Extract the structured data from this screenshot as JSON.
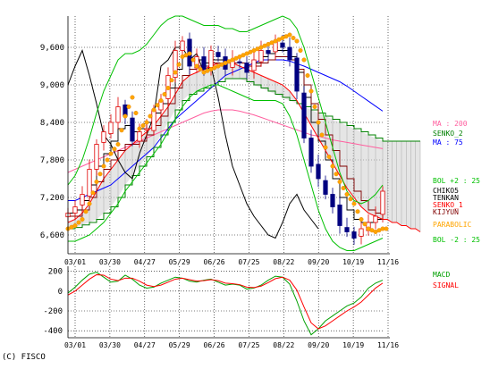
{
  "chart_data": [
    {
      "type": "line",
      "panel": "price",
      "x_ticks": [
        "03/01",
        "03/30",
        "04/27",
        "05/29",
        "06/26",
        "07/25",
        "08/22",
        "09/20",
        "10/19",
        "11/16"
      ],
      "y_ticks": [
        "9,600",
        "9,000",
        "8,400",
        "7,800",
        "7,200",
        "6,600"
      ],
      "ylim": [
        6300,
        10100
      ],
      "candles": {
        "bull_color": "#e00000",
        "bear_color": "#000080",
        "close": [
          6950,
          7050,
          7250,
          7650,
          8050,
          8250,
          8400,
          8650,
          8500,
          8100,
          8250,
          8300,
          8600,
          8750,
          9150,
          9550,
          9700,
          9300,
          9450,
          9250,
          9550,
          9450,
          9250,
          9400,
          9350,
          9200,
          9400,
          9550,
          9500,
          9700,
          9600,
          9400,
          8900,
          8150,
          7700,
          7500,
          7250,
          7050,
          6750,
          6650,
          6550,
          6700,
          6800,
          6900,
          7300
        ]
      },
      "series": [
        {
          "name": "MA : 200",
          "color": "#ff5f9f",
          "values": [
            7600,
            7650,
            7700,
            7750,
            7800,
            7850,
            7900,
            7950,
            8000,
            8050,
            8100,
            8150,
            8200,
            8250,
            8300,
            8350,
            8400,
            8450,
            8500,
            8550,
            8580,
            8600,
            8600,
            8600,
            8580,
            8550,
            8520,
            8480,
            8440,
            8400,
            8360,
            8320,
            8280,
            8240,
            8200,
            8180,
            8150,
            8120,
            8100,
            8080,
            8060,
            8040,
            8020,
            8000,
            7980
          ]
        },
        {
          "name": "MA : 75",
          "color": "#0000ff",
          "values": [
            7150,
            7150,
            7200,
            7250,
            7300,
            7350,
            7400,
            7500,
            7600,
            7700,
            7800,
            7900,
            8000,
            8150,
            8300,
            8450,
            8550,
            8650,
            8750,
            8850,
            8950,
            9050,
            9150,
            9200,
            9250,
            9300,
            9350,
            9400,
            9400,
            9400,
            9400,
            9380,
            9340,
            9300,
            9250,
            9200,
            9150,
            9100,
            9050,
            8980,
            8900,
            8820,
            8740,
            8660,
            8580
          ]
        },
        {
          "name": "SENKO_2",
          "color": "#008000",
          "values": [
            6700,
            6720,
            6760,
            6800,
            6850,
            6950,
            7050,
            7200,
            7400,
            7550,
            7700,
            7850,
            8000,
            8200,
            8400,
            8600,
            8750,
            8850,
            8900,
            8950,
            9000,
            9050,
            9100,
            9100,
            9100,
            9050,
            9000,
            8950,
            8900,
            8850,
            8800,
            8750,
            8700,
            8650,
            8600,
            8550,
            8500,
            8450,
            8400,
            8350,
            8300,
            8250,
            8200,
            8150,
            8100
          ]
        },
        {
          "name": "CHIKO",
          "color": "#000000",
          "values": [
            9000,
            9300,
            9550,
            9150,
            8700,
            8200,
            8050,
            7800,
            7600,
            7500,
            7900,
            8200,
            8500,
            9300,
            9400,
            9600,
            9600,
            9400,
            9500,
            9200,
            9300,
            8800,
            8200,
            7700,
            7400,
            7100,
            6900,
            6750,
            6600,
            6550,
            6800,
            7100,
            7250,
            7000,
            6850,
            6700
          ]
        },
        {
          "name": "TENKAN",
          "color": "#000000",
          "values": [
            6950,
            7000,
            7150,
            7400,
            7700,
            7900,
            8100,
            8300,
            8350,
            8250,
            8300,
            8400,
            8550,
            8700,
            8950,
            9250,
            9450,
            9400,
            9400,
            9350,
            9400,
            9400,
            9350,
            9350,
            9350,
            9300,
            9350,
            9450,
            9500,
            9550,
            9550,
            9450,
            9200,
            8800,
            8400,
            8100,
            7800,
            7500,
            7200,
            7000,
            6850,
            6800,
            6800,
            6850,
            6950
          ]
        },
        {
          "name": "SENKO_1",
          "color": "#ff0000",
          "values": [
            6800,
            6850,
            6950,
            7100,
            7300,
            7500,
            7650,
            7800,
            7950,
            8050,
            8150,
            8250,
            8350,
            8500,
            8650,
            8850,
            9050,
            9150,
            9200,
            9250,
            9300,
            9350,
            9350,
            9350,
            9300,
            9250,
            9200,
            9150,
            9100,
            9050,
            9000,
            8900,
            8750,
            8550,
            8350,
            8150,
            7950,
            7750,
            7550,
            7350,
            7200,
            7050,
            6950,
            6900,
            6850
          ]
        },
        {
          "name": "KIJYUN",
          "color": "#800000",
          "values": [
            6900,
            6900,
            7000,
            7200,
            7450,
            7650,
            7800,
            7950,
            8050,
            8050,
            8100,
            8200,
            8350,
            8500,
            8700,
            8950,
            9150,
            9250,
            9300,
            9300,
            9350,
            9350,
            9350,
            9350,
            9350,
            9300,
            9300,
            9350,
            9400,
            9450,
            9450,
            9400,
            9250,
            9000,
            8700,
            8450,
            8200,
            7950,
            7700,
            7500,
            7300,
            7150,
            7000,
            6950,
            6950
          ]
        },
        {
          "name": "BOL +2 : 25",
          "color": "#00c000",
          "values": [
            7400,
            7550,
            7800,
            8150,
            8550,
            8900,
            9150,
            9400,
            9500,
            9500,
            9550,
            9650,
            9800,
            9950,
            10050,
            10100,
            10100,
            10050,
            10000,
            9950,
            9950,
            9950,
            9900,
            9900,
            9850,
            9850,
            9900,
            9950,
            10000,
            10050,
            10100,
            10050,
            9900,
            9600,
            9200,
            8800,
            8400,
            8000,
            7600,
            7300,
            7150,
            7100,
            7150,
            7250,
            7400
          ]
        },
        {
          "name": "BOL -2 : 25",
          "color": "#00c000",
          "values": [
            6500,
            6500,
            6550,
            6600,
            6700,
            6800,
            6950,
            7100,
            7300,
            7450,
            7600,
            7750,
            7900,
            8050,
            8250,
            8450,
            8650,
            8800,
            8900,
            8950,
            9000,
            9000,
            8950,
            8900,
            8850,
            8800,
            8750,
            8750,
            8750,
            8750,
            8700,
            8500,
            8200,
            7800,
            7400,
            7000,
            6700,
            6500,
            6400,
            6350,
            6350,
            6400,
            6450,
            6500,
            6550
          ]
        },
        {
          "name": "PARABOLIC",
          "color": "#ffa500",
          "values": [
            6700,
            6750,
            6850,
            7100,
            7450,
            7700,
            7900,
            8050,
            8500,
            8800,
            8300,
            8400,
            8600,
            8750,
            8950,
            9200,
            9450,
            9500,
            9300,
            9200,
            9250,
            9300,
            9350,
            9400,
            9450,
            9500,
            9550,
            9600,
            9650,
            9700,
            9750,
            9800,
            9700,
            9400,
            8900,
            8400,
            8000,
            7700,
            7450,
            7250,
            7100,
            6850,
            6700,
            6650,
            6700
          ]
        }
      ],
      "cloud_extension": {
        "senko_1": [
          6850,
          6800,
          6800,
          6750,
          6750,
          6700,
          6700,
          6650
        ],
        "senko_2": [
          8100,
          8100,
          8100,
          8100,
          8100,
          8100,
          8100,
          8100
        ]
      },
      "legend": [
        "MA : 200",
        "SENKO_2",
        "MA : 75",
        "BOL +2 : 25",
        "CHIKO5",
        "TENKAN",
        "SENKO_1",
        "KIJYUN",
        "PARABOLIC",
        "BOL -2 : 25"
      ]
    },
    {
      "type": "line",
      "panel": "macd",
      "x_ticks": [
        "03/01",
        "03/30",
        "04/27",
        "05/29",
        "06/26",
        "07/25",
        "08/22",
        "09/20",
        "10/19",
        "11/16"
      ],
      "y_ticks": [
        "200",
        "0",
        "-200",
        "-400"
      ],
      "ylim": [
        -470,
        250
      ],
      "series": [
        {
          "name": "MACD",
          "color": "#00a000",
          "values": [
            -20,
            40,
            110,
            170,
            190,
            140,
            90,
            100,
            160,
            120,
            60,
            30,
            40,
            80,
            110,
            140,
            130,
            100,
            90,
            110,
            120,
            90,
            60,
            70,
            60,
            20,
            30,
            60,
            110,
            150,
            140,
            70,
            -100,
            -300,
            -440,
            -380,
            -300,
            -250,
            -200,
            -150,
            -120,
            -60,
            30,
            80,
            110
          ]
        },
        {
          "name": "SIGNAL",
          "color": "#ff0000",
          "values": [
            -40,
            0,
            60,
            120,
            165,
            160,
            120,
            105,
            130,
            130,
            100,
            60,
            45,
            60,
            90,
            120,
            130,
            115,
            100,
            105,
            115,
            105,
            80,
            75,
            65,
            40,
            35,
            50,
            85,
            125,
            140,
            110,
            10,
            -160,
            -320,
            -380,
            -350,
            -300,
            -250,
            -200,
            -160,
            -110,
            -40,
            30,
            80
          ]
        }
      ],
      "legend": [
        "MACD",
        "SIGNAL"
      ]
    }
  ],
  "copyright": "(C) FISCO",
  "colors": {
    "cloud_fill": "#cfcfcf",
    "grid": "#000000",
    "legend": {
      "MA : 200": "#ff5f9f",
      "SENKO_2": "#008000",
      "MA : 75": "#0000ff",
      "BOL +2 : 25": "#00c000",
      "CHIKO5": "#000000",
      "TENKAN": "#000000",
      "SENKO_1": "#ff0000",
      "KIJYUN": "#800000",
      "PARABOLIC": "#ffa500",
      "BOL -2 : 25": "#00c000",
      "MACD": "#00a000",
      "SIGNAL": "#ff0000"
    }
  }
}
